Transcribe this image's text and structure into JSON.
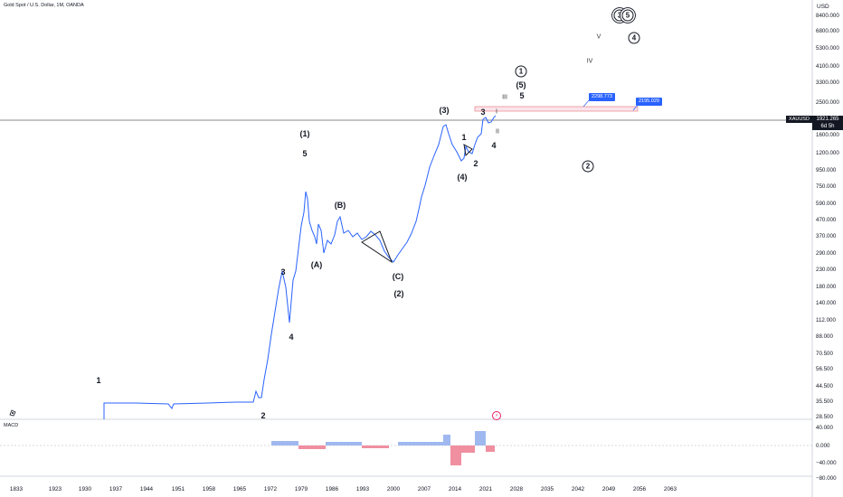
{
  "symbol_title": "Gold Spot / U.S. Dollar, 1M, OANDA",
  "currency": "USD",
  "y_axis_ticks": [
    "8400.000",
    "6800.000",
    "5300.000",
    "4100.000",
    "3300.000",
    "2500.000",
    "1600.000",
    "1200.000",
    "950.000",
    "750.000",
    "590.000",
    "470.000",
    "370.000",
    "290.000",
    "230.000",
    "180.000",
    "140.000",
    "112.000",
    "88.000",
    "70.500",
    "56.500",
    "44.500",
    "35.500",
    "28.500"
  ],
  "x_axis_ticks": [
    "1833",
    "1923",
    "1930",
    "1937",
    "1944",
    "1951",
    "1958",
    "1965",
    "1972",
    "1979",
    "1986",
    "1993",
    "2000",
    "2007",
    "2014",
    "2021",
    "2028",
    "2035",
    "2042",
    "2049",
    "2056",
    "2063"
  ],
  "macd": {
    "label": "MACD",
    "ticks": [
      "40.000",
      "0.000",
      "−40.000",
      "−80.000"
    ]
  },
  "price": {
    "symbol": "XAUUSD",
    "last": "1921.265",
    "countdown": "6d 5h"
  },
  "targets": [
    "2298.773",
    "2195.029"
  ],
  "wave_labels": {
    "w1": "1",
    "w2": "2",
    "w3": "3",
    "w4": "4",
    "p1": "(1)",
    "p5": "5",
    "pA": "(A)",
    "pB": "(B)",
    "pC": "(C)",
    "p2": "(2)",
    "p3": "(3)",
    "p4": "(4)",
    "s1": "1",
    "s2": "2",
    "s3": "3",
    "s4": "4",
    "p5b": "(5)",
    "s5": "5",
    "rI": "I",
    "rII": "II",
    "rIII": "III",
    "rIV": "IV",
    "rV": "V"
  },
  "circled_labels": {
    "c1": "1",
    "c2": "2",
    "c3": "3",
    "c4": "4",
    "c5": "5"
  },
  "icons": {
    "settings": "gear-icon",
    "flag": "flag-icon"
  },
  "colors": {
    "price_line": "#2962ff",
    "macd_pos": "#9fb8ef",
    "macd_neg": "#ef8fa0",
    "target": "#2962ff",
    "text": "#131722"
  }
}
